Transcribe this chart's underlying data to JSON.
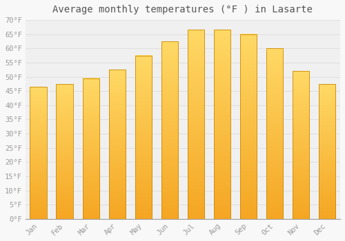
{
  "title": "Average monthly temperatures (°F ) in Lasarte",
  "months": [
    "Jan",
    "Feb",
    "Mar",
    "Apr",
    "May",
    "Jun",
    "Jul",
    "Aug",
    "Sep",
    "Oct",
    "Nov",
    "Dec"
  ],
  "values": [
    46.5,
    47.5,
    49.5,
    52.5,
    57.5,
    62.5,
    66.5,
    66.5,
    65.0,
    60.0,
    52.0,
    47.5
  ],
  "bar_color_bottom": "#F5A623",
  "bar_color_top": "#FFD966",
  "bar_edge_color": "#CC8800",
  "ylim": [
    0,
    70
  ],
  "yticks": [
    0,
    5,
    10,
    15,
    20,
    25,
    30,
    35,
    40,
    45,
    50,
    55,
    60,
    65,
    70
  ],
  "background_color": "#f8f8f8",
  "plot_bg_color": "#f0f0f0",
  "grid_color": "#e0e0e0",
  "title_fontsize": 10,
  "tick_fontsize": 7.5,
  "tick_color": "#999999",
  "font_family": "monospace"
}
